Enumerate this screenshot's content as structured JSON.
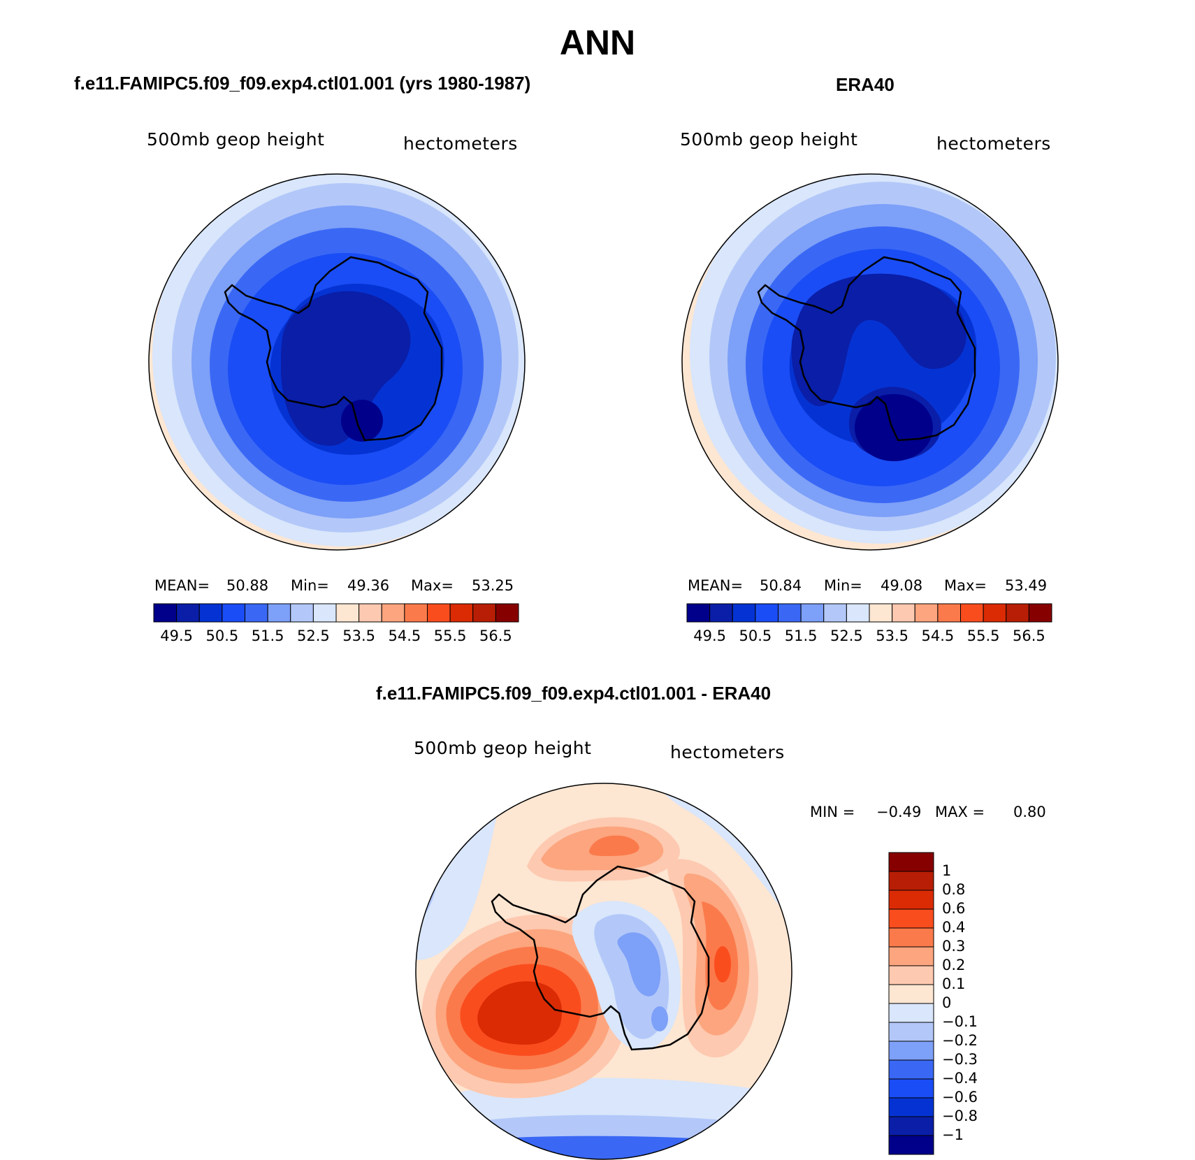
{
  "title": "ANN",
  "colors": {
    "abs_palette": [
      "#00008b",
      "#0a1ea8",
      "#0533d3",
      "#1a4df5",
      "#3a68f5",
      "#7da0f8",
      "#b3c8f9",
      "#d9e6fb",
      "#fde6d2",
      "#fdc9b0",
      "#fca57e",
      "#fb7a4b",
      "#fa4d1e",
      "#db2b05",
      "#b81e05",
      "#870000"
    ],
    "diff_palette": [
      "#00008b",
      "#0a1ea8",
      "#0533d3",
      "#1a4df5",
      "#3a68f5",
      "#7da0f8",
      "#b3c8f9",
      "#d9e6fb",
      "#fde6d2",
      "#fdc9b0",
      "#fca57e",
      "#fb7a4b",
      "#fa4d1e",
      "#db2b05",
      "#b81e05",
      "#870000"
    ]
  },
  "panel1": {
    "title": "f.e11.FAMIPC5.f09_f09.exp4.ctl01.001 (yrs 1980-1987)",
    "var_label": "500mb  geop  height",
    "units": "hectometers",
    "mean_label": "MEAN=",
    "mean": "50.88",
    "min_label": "Min=",
    "min": "49.36",
    "max_label": "Max=",
    "max": "53.25"
  },
  "panel2": {
    "title": "ERA40",
    "var_label": "500mb  geop  height",
    "units": "hectometers",
    "mean_label": "MEAN=",
    "mean": "50.84",
    "min_label": "Min=",
    "min": "49.08",
    "max_label": "Max=",
    "max": "53.49"
  },
  "panel3": {
    "title": "f.e11.FAMIPC5.f09_f09.exp4.ctl01.001 - ERA40",
    "var_label": "500mb  geop  height",
    "units": "hectometers",
    "min_label": "MIN =",
    "min": "−0.49",
    "max_label": "MAX =",
    "max": "0.80"
  },
  "abs_colorbar_labels": [
    "49.5",
    "50.5",
    "51.5",
    "52.5",
    "53.5",
    "54.5",
    "55.5",
    "56.5"
  ],
  "diff_colorbar_labels": [
    "1",
    "0.8",
    "0.6",
    "0.4",
    "0.3",
    "0.2",
    "0.1",
    "0",
    "−0.1",
    "−0.2",
    "−0.3",
    "−0.4",
    "−0.6",
    "−0.8",
    "−1"
  ]
}
